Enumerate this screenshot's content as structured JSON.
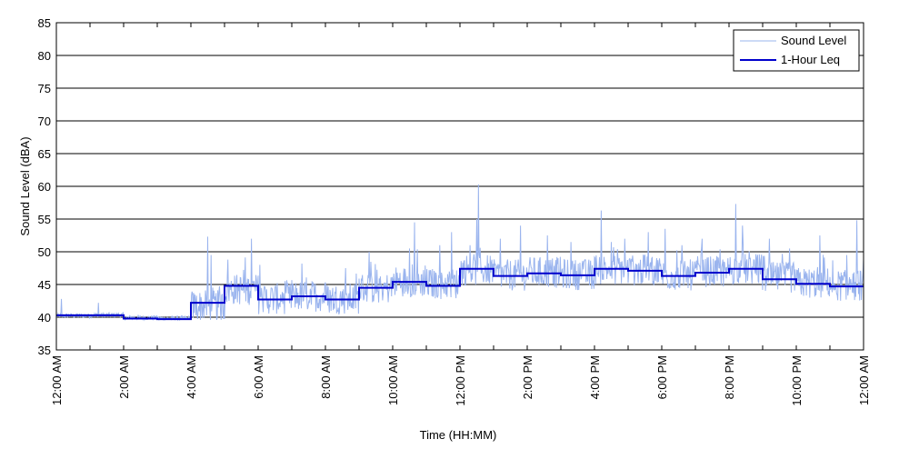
{
  "chart_data": {
    "type": "line",
    "title": "",
    "xlabel": "Time (HH:MM)",
    "ylabel": "Sound Level (dBA)",
    "ylim": [
      35,
      85
    ],
    "yticks": [
      35,
      40,
      45,
      50,
      55,
      60,
      65,
      70,
      75,
      80,
      85
    ],
    "xlim_hours": [
      0,
      24
    ],
    "xtick_hours": [
      0,
      2,
      4,
      6,
      8,
      10,
      12,
      14,
      16,
      18,
      20,
      22,
      24
    ],
    "xtick_labels": [
      "12:00 AM",
      "2:00 AM",
      "4:00 AM",
      "6:00 AM",
      "8:00 AM",
      "10:00 AM",
      "12:00 PM",
      "2:00 PM",
      "4:00 PM",
      "6:00 PM",
      "8:00 PM",
      "10:00 PM",
      "12:00 AM"
    ],
    "grid": "horizontal",
    "legend_position": "top-right",
    "series": [
      {
        "name": "Sound Level",
        "color": "#9ab4ee",
        "hourly_base": [
          40.2,
          40.3,
          39.9,
          39.8,
          41.5,
          44.0,
          42.6,
          43.0,
          42.6,
          44.2,
          45.2,
          44.9,
          47.0,
          46.2,
          46.6,
          46.3,
          47.1,
          46.9,
          46.2,
          46.7,
          47.1,
          45.8,
          45.0,
          44.6
        ],
        "spikes": [
          {
            "hour": 0.15,
            "value": 42.8
          },
          {
            "hour": 1.25,
            "value": 42.2
          },
          {
            "hour": 4.5,
            "value": 52.3
          },
          {
            "hour": 4.6,
            "value": 49.5
          },
          {
            "hour": 5.1,
            "value": 48.8
          },
          {
            "hour": 5.8,
            "value": 52.0
          },
          {
            "hour": 6.05,
            "value": 48.0
          },
          {
            "hour": 7.3,
            "value": 48.2
          },
          {
            "hour": 8.6,
            "value": 47.5
          },
          {
            "hour": 9.3,
            "value": 50.0
          },
          {
            "hour": 10.5,
            "value": 50.5
          },
          {
            "hour": 10.65,
            "value": 54.5
          },
          {
            "hour": 11.4,
            "value": 51.0
          },
          {
            "hour": 11.75,
            "value": 53.0
          },
          {
            "hour": 12.3,
            "value": 51.0
          },
          {
            "hour": 12.5,
            "value": 55.0
          },
          {
            "hour": 12.55,
            "value": 60.3
          },
          {
            "hour": 13.2,
            "value": 52.0
          },
          {
            "hour": 13.8,
            "value": 54.0
          },
          {
            "hour": 14.6,
            "value": 52.5
          },
          {
            "hour": 15.3,
            "value": 51.5
          },
          {
            "hour": 16.2,
            "value": 56.3
          },
          {
            "hour": 16.9,
            "value": 52.0
          },
          {
            "hour": 17.6,
            "value": 53.0
          },
          {
            "hour": 18.1,
            "value": 53.5
          },
          {
            "hour": 18.6,
            "value": 51.0
          },
          {
            "hour": 19.2,
            "value": 52.0
          },
          {
            "hour": 20.2,
            "value": 57.3
          },
          {
            "hour": 20.4,
            "value": 54.0
          },
          {
            "hour": 21.2,
            "value": 52.0
          },
          {
            "hour": 21.8,
            "value": 50.5
          },
          {
            "hour": 22.7,
            "value": 52.5
          },
          {
            "hour": 23.5,
            "value": 49.5
          },
          {
            "hour": 23.8,
            "value": 54.8
          }
        ]
      },
      {
        "name": "1-Hour Leq",
        "color": "#0000cc",
        "hour_start": [
          0,
          1,
          2,
          3,
          4,
          5,
          6,
          7,
          8,
          9,
          10,
          11,
          12,
          13,
          14,
          15,
          16,
          17,
          18,
          19,
          20,
          21,
          22,
          23
        ],
        "values": [
          40.3,
          40.3,
          39.8,
          39.7,
          42.2,
          44.8,
          42.7,
          43.2,
          42.7,
          44.5,
          45.4,
          44.8,
          47.4,
          46.3,
          46.7,
          46.4,
          47.4,
          47.1,
          46.3,
          46.8,
          47.4,
          45.8,
          45.1,
          44.7
        ]
      }
    ]
  }
}
